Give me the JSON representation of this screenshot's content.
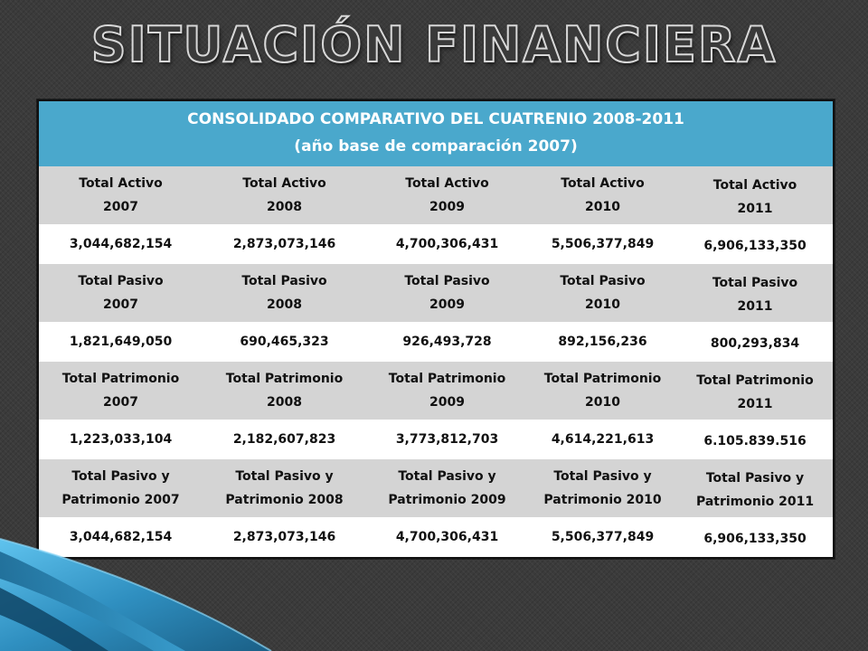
{
  "title": "SITUACIÓN FINANCIERA",
  "table": {
    "header_line1": "CONSOLIDADO COMPARATIVO DEL CUATRENIO 2008-2011",
    "header_line2": "(año base de comparación 2007)",
    "groups": [
      {
        "labels": [
          [
            "Total Activo",
            "2007"
          ],
          [
            "Total Activo",
            "2008"
          ],
          [
            "Total Activo",
            "2009"
          ],
          [
            "Total Activo",
            "2010"
          ],
          [
            "Total Activo",
            "2011"
          ]
        ],
        "values": [
          "3,044,682,154",
          "2,873,073,146",
          "4,700,306,431",
          "5,506,377,849",
          "6,906,133,350"
        ]
      },
      {
        "labels": [
          [
            "Total Pasivo",
            "2007"
          ],
          [
            "Total Pasivo",
            "2008"
          ],
          [
            "Total Pasivo",
            "2009"
          ],
          [
            "Total Pasivo",
            "2010"
          ],
          [
            "Total Pasivo",
            "2011"
          ]
        ],
        "values": [
          "1,821,649,050",
          "690,465,323",
          "926,493,728",
          "892,156,236",
          "800,293,834"
        ]
      },
      {
        "labels": [
          [
            "Total Patrimonio",
            "2007"
          ],
          [
            "Total Patrimonio",
            "2008"
          ],
          [
            "Total Patrimonio",
            "2009"
          ],
          [
            "Total Patrimonio",
            "2010"
          ],
          [
            "Total Patrimonio",
            "2011"
          ]
        ],
        "values": [
          "1,223,033,104",
          "2,182,607,823",
          "3,773,812,703",
          "4,614,221,613",
          "6.105.839.516"
        ]
      },
      {
        "labels": [
          [
            "Total Pasivo y",
            "Patrimonio 2007"
          ],
          [
            "Total Pasivo y",
            "Patrimonio 2008"
          ],
          [
            "Total Pasivo y",
            "Patrimonio 2009"
          ],
          [
            "Total Pasivo y",
            "Patrimonio 2010"
          ],
          [
            "Total Pasivo y",
            "Patrimonio 2011"
          ]
        ],
        "values": [
          "3,044,682,154",
          "2,873,073,146",
          "4,700,306,431",
          "5,506,377,849",
          "6,906,133,350"
        ]
      }
    ]
  },
  "colors": {
    "header_bg": "#4aa8cc",
    "label_row_bg": "#d4d4d4",
    "value_row_bg": "#ffffff",
    "slide_bg": "#3b3b3b",
    "accent_shape": "#3fa6d6"
  },
  "decorations": [
    "blue-swoosh-shape"
  ]
}
